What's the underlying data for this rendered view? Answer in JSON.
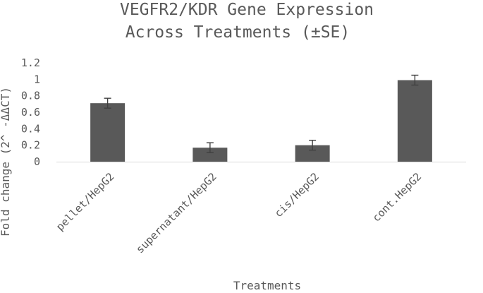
{
  "chart_data": {
    "type": "bar",
    "title_lines": [
      "VEGFR2/KDR Gene Expression",
      "Across Treatments (±SE)"
    ],
    "xlabel": "Treatments",
    "ylabel": "Fold change (2^ -ΔΔCT)",
    "categories": [
      "pellet/HepG2",
      "supernatant/HepG2",
      "cis/HepG2",
      "cont.HepG2"
    ],
    "values": [
      0.71,
      0.17,
      0.2,
      0.99
    ],
    "errors": [
      0.06,
      0.06,
      0.06,
      0.06
    ],
    "ylim": [
      0,
      1.2
    ],
    "yticks": [
      "0",
      "0.2",
      "0.4",
      "0.6",
      "0.8",
      "1",
      "1.2"
    ],
    "grid": false,
    "legend": "none",
    "bar_color": "#595959",
    "error_bar_color": "#404040",
    "text_color": "#595959"
  }
}
